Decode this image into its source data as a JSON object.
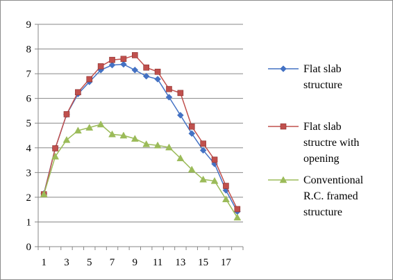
{
  "chart_data": {
    "type": "line",
    "title": "",
    "xlabel": "",
    "ylabel": "",
    "x": [
      1,
      2,
      3,
      4,
      5,
      6,
      7,
      8,
      9,
      10,
      11,
      12,
      13,
      14,
      15,
      16,
      17,
      18
    ],
    "x_tick_labels": [
      "1",
      "3",
      "5",
      "7",
      "9",
      "11",
      "13",
      "15",
      "17"
    ],
    "y_tick_labels": [
      "0",
      "1",
      "2",
      "3",
      "4",
      "5",
      "6",
      "7",
      "8",
      "9"
    ],
    "ylim": [
      0,
      9
    ],
    "xlim": [
      0.5,
      18.5
    ],
    "grid": "horizontal",
    "legend_position": "right",
    "series": [
      {
        "name": "Flat slab structure",
        "legend_lines": [
          "Flat slab",
          "structure"
        ],
        "color": "#4472C4",
        "marker": "diamond",
        "values": [
          2.15,
          3.98,
          5.35,
          6.18,
          6.67,
          7.15,
          7.35,
          7.38,
          7.15,
          6.9,
          6.78,
          6.05,
          5.32,
          4.58,
          3.9,
          3.35,
          2.28,
          1.42
        ]
      },
      {
        "name": "Flat slab structre with opening",
        "legend_lines": [
          "Flat slab",
          "structre with",
          "opening"
        ],
        "color": "#C0504D",
        "marker": "square",
        "values": [
          2.12,
          3.98,
          5.36,
          6.25,
          6.78,
          7.3,
          7.56,
          7.6,
          7.75,
          7.25,
          7.08,
          6.38,
          6.22,
          4.86,
          4.17,
          3.52,
          2.46,
          1.52
        ]
      },
      {
        "name": "Conventional R.C. framed structure",
        "legend_lines": [
          "Conventional",
          "R.C. framed",
          "structure"
        ],
        "color": "#9BBB59",
        "marker": "triangle",
        "values": [
          2.12,
          3.65,
          4.32,
          4.7,
          4.82,
          4.95,
          4.55,
          4.5,
          4.37,
          4.15,
          4.1,
          4.02,
          3.58,
          3.12,
          2.72,
          2.66,
          1.92,
          1.18
        ]
      }
    ]
  }
}
